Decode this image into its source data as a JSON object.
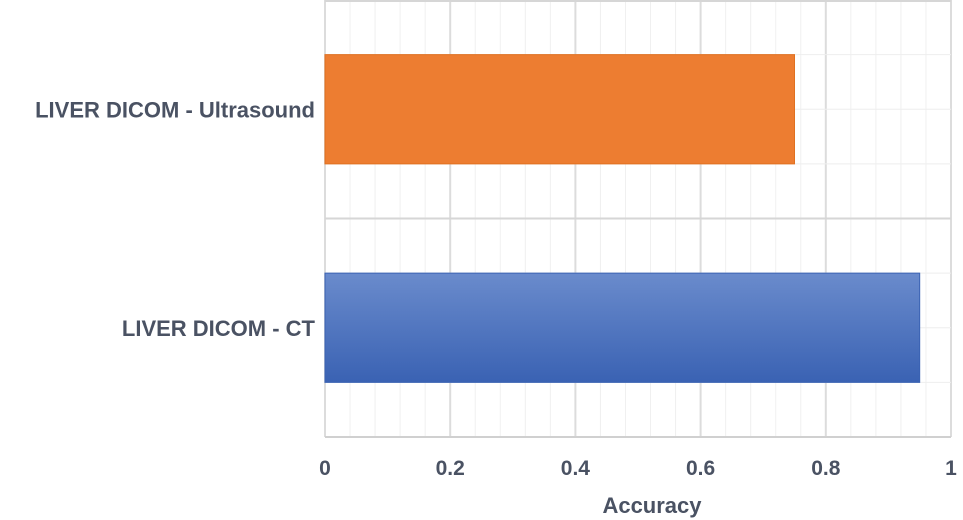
{
  "chart_data": {
    "type": "bar",
    "orientation": "horizontal",
    "categories": [
      "LIVER DICOM - Ultrasound",
      "LIVER DICOM - CT"
    ],
    "values": [
      0.75,
      0.95
    ],
    "bar_colors": [
      "#ed7d31",
      "#4472c4"
    ],
    "title": "",
    "xlabel": "Accuracy",
    "ylabel": "",
    "xlim": [
      0,
      1
    ],
    "xticks": [
      "0",
      "0.2",
      "0.4",
      "0.6",
      "0.8",
      "1"
    ],
    "grid": true
  }
}
